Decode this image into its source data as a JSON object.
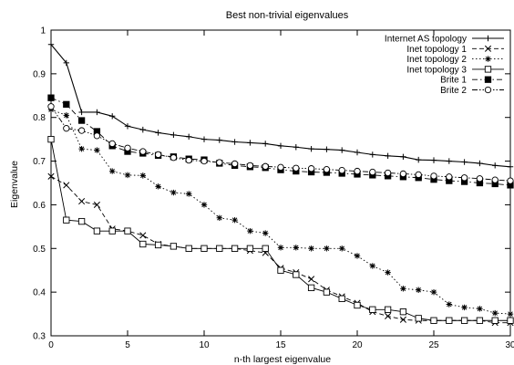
{
  "chart_data": {
    "type": "line",
    "title": "Best non-trivial eigenvalues",
    "xlabel": "n-th largest eigenvalue",
    "ylabel": "Eigenvalue",
    "xlim": [
      0,
      30
    ],
    "ylim": [
      0.3,
      1.0
    ],
    "xticks": [
      0,
      5,
      10,
      15,
      20,
      25,
      30
    ],
    "yticks": [
      0.3,
      0.4,
      0.5,
      0.6,
      0.7,
      0.8,
      0.9,
      1.0
    ],
    "ytick_labels": [
      "0.3",
      "0.4",
      "0.5",
      "0.6",
      "0.7",
      "0.8",
      "0.9",
      "1"
    ],
    "grid": false,
    "legend_position": "top-right",
    "series": [
      {
        "name": "Internet AS topology",
        "marker": "plus",
        "dash": "solid",
        "values": [
          0.967,
          0.925,
          0.812,
          0.812,
          0.803,
          0.78,
          0.772,
          0.765,
          0.76,
          0.756,
          0.75,
          0.748,
          0.744,
          0.742,
          0.74,
          0.735,
          0.732,
          0.728,
          0.727,
          0.725,
          0.72,
          0.715,
          0.712,
          0.71,
          0.703,
          0.702,
          0.7,
          0.698,
          0.695,
          0.69,
          0.687
        ]
      },
      {
        "name": "Inet topology 1",
        "marker": "cross",
        "dash": "dashed",
        "values": [
          0.665,
          0.645,
          0.608,
          0.6,
          0.545,
          0.54,
          0.53,
          0.51,
          0.505,
          0.5,
          0.5,
          0.5,
          0.5,
          0.495,
          0.49,
          0.455,
          0.445,
          0.43,
          0.405,
          0.39,
          0.375,
          0.355,
          0.345,
          0.337,
          0.335,
          0.335,
          0.335,
          0.335,
          0.335,
          0.33,
          0.33
        ]
      },
      {
        "name": "Inet topology 2",
        "marker": "star",
        "dash": "dotted",
        "values": [
          0.818,
          0.805,
          0.728,
          0.725,
          0.677,
          0.668,
          0.667,
          0.642,
          0.628,
          0.625,
          0.6,
          0.57,
          0.565,
          0.54,
          0.535,
          0.502,
          0.502,
          0.5,
          0.5,
          0.5,
          0.483,
          0.46,
          0.445,
          0.408,
          0.405,
          0.4,
          0.372,
          0.365,
          0.362,
          0.352,
          0.35
        ]
      },
      {
        "name": "Inet topology 3",
        "marker": "open-square",
        "dash": "solid-thin",
        "values": [
          0.75,
          0.565,
          0.562,
          0.54,
          0.54,
          0.54,
          0.51,
          0.508,
          0.505,
          0.5,
          0.5,
          0.5,
          0.5,
          0.5,
          0.5,
          0.45,
          0.44,
          0.41,
          0.4,
          0.385,
          0.37,
          0.36,
          0.36,
          0.355,
          0.34,
          0.335,
          0.335,
          0.335,
          0.335,
          0.335,
          0.335
        ]
      },
      {
        "name": "Brite 1",
        "marker": "filled-square",
        "dash": "dashdot",
        "values": [
          0.845,
          0.83,
          0.793,
          0.768,
          0.735,
          0.722,
          0.718,
          0.713,
          0.71,
          0.705,
          0.703,
          0.695,
          0.69,
          0.687,
          0.685,
          0.68,
          0.677,
          0.675,
          0.674,
          0.672,
          0.67,
          0.668,
          0.666,
          0.664,
          0.662,
          0.658,
          0.655,
          0.653,
          0.65,
          0.648,
          0.645
        ]
      },
      {
        "name": "Brite 2",
        "marker": "open-circle",
        "dash": "dashdotdot",
        "values": [
          0.825,
          0.775,
          0.77,
          0.758,
          0.74,
          0.73,
          0.722,
          0.715,
          0.708,
          0.702,
          0.7,
          0.697,
          0.694,
          0.69,
          0.688,
          0.686,
          0.684,
          0.683,
          0.681,
          0.679,
          0.677,
          0.675,
          0.673,
          0.671,
          0.669,
          0.666,
          0.664,
          0.662,
          0.66,
          0.657,
          0.655
        ]
      }
    ]
  }
}
